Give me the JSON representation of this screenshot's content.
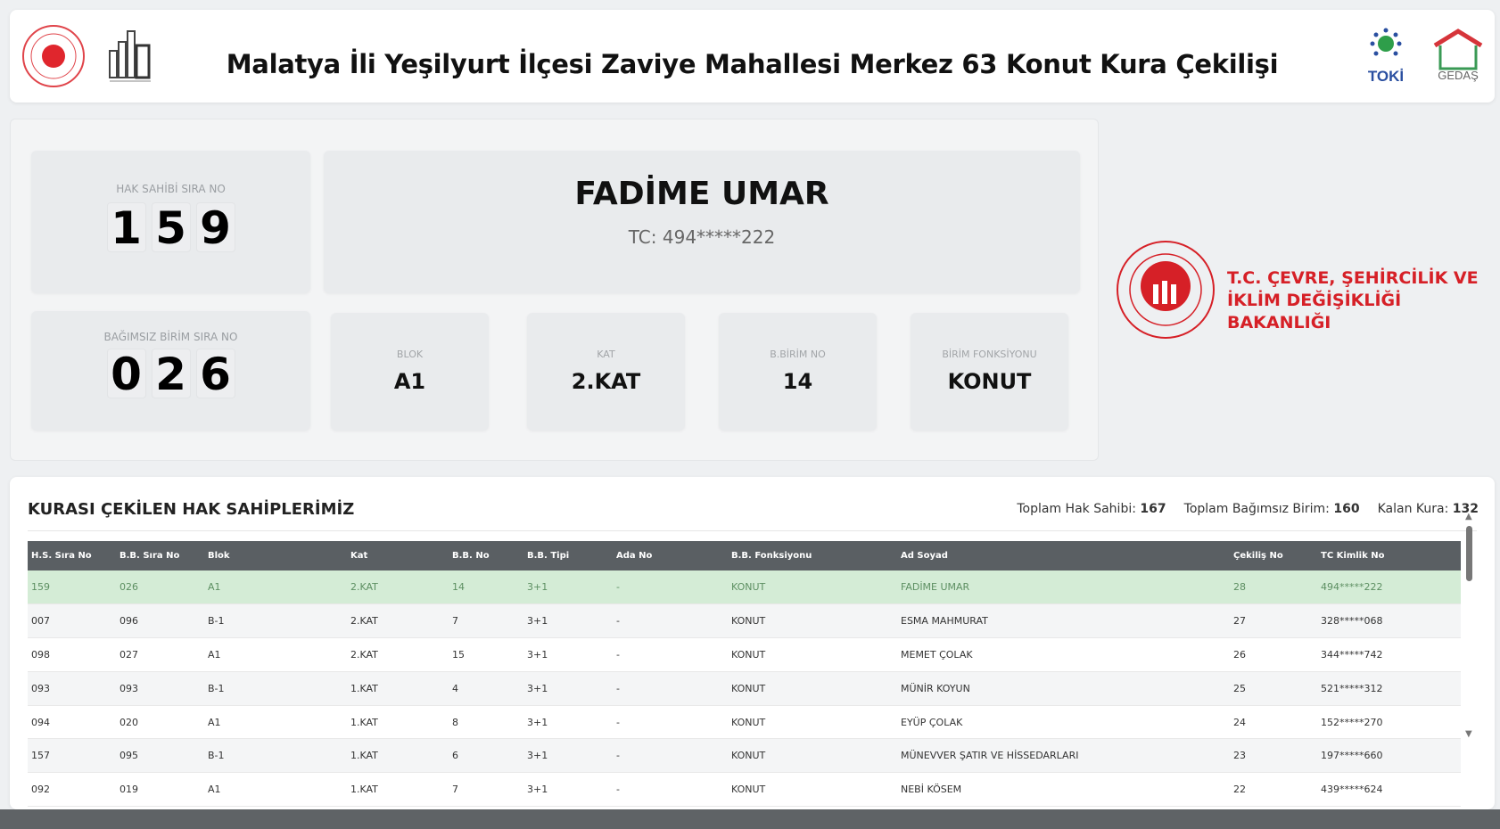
{
  "header": {
    "title": "Malatya İli Yeşilyurt İlçesi Zaviye Mahallesi Merkez 63 Konut Kura Çekilişi",
    "logos": [
      "ministry-seal",
      "building-logo",
      "TOKİ",
      "GEDAŞ"
    ]
  },
  "current": {
    "hak_label": "HAK SAHİBİ SIRA NO",
    "hak_digits": [
      "1",
      "5",
      "9"
    ],
    "name": "FADİME UMAR",
    "tc": "TC: 494*****222",
    "bb_label": "BAĞIMSIZ BİRİM SIRA NO",
    "bb_digits": [
      "0",
      "2",
      "6"
    ],
    "fields": [
      {
        "label": "BLOK",
        "value": "A1"
      },
      {
        "label": "KAT",
        "value": "2.KAT"
      },
      {
        "label": "B.BİRİM NO",
        "value": "14"
      },
      {
        "label": "BİRİM FONKSİYONU",
        "value": "KONUT"
      }
    ]
  },
  "ministry": {
    "line1": "T.C. ÇEVRE, ŞEHİRCİLİK VE",
    "line2": "İKLİM DEĞİŞİKLİĞİ BAKANLIĞI",
    "color": "#d62027"
  },
  "table": {
    "title": "KURASI ÇEKİLEN HAK SAHİPLERİMİZ",
    "stats": [
      {
        "label": "Toplam Hak Sahibi:",
        "value": "167"
      },
      {
        "label": "Toplam Bağımsız Birim:",
        "value": "160"
      },
      {
        "label": "Kalan Kura:",
        "value": "132"
      }
    ],
    "columns": [
      "H.S. Sıra No",
      "B.B. Sıra No",
      "Blok",
      "Kat",
      "B.B. No",
      "B.B. Tipi",
      "Ada No",
      "B.B. Fonksiyonu",
      "Ad Soyad",
      "Çekiliş No",
      "TC Kimlik No"
    ],
    "rows": [
      [
        "159",
        "026",
        "A1",
        "2.KAT",
        "14",
        "3+1",
        "-",
        "KONUT",
        "FADİME UMAR",
        "28",
        "494*****222"
      ],
      [
        "007",
        "096",
        "B-1",
        "2.KAT",
        "7",
        "3+1",
        "-",
        "KONUT",
        "ESMA MAHMURAT",
        "27",
        "328*****068"
      ],
      [
        "098",
        "027",
        "A1",
        "2.KAT",
        "15",
        "3+1",
        "-",
        "KONUT",
        "MEMET ÇOLAK",
        "26",
        "344*****742"
      ],
      [
        "093",
        "093",
        "B-1",
        "1.KAT",
        "4",
        "3+1",
        "-",
        "KONUT",
        "MÜNİR KOYUN",
        "25",
        "521*****312"
      ],
      [
        "094",
        "020",
        "A1",
        "1.KAT",
        "8",
        "3+1",
        "-",
        "KONUT",
        "EYÜP ÇOLAK",
        "24",
        "152*****270"
      ],
      [
        "157",
        "095",
        "B-1",
        "1.KAT",
        "6",
        "3+1",
        "-",
        "KONUT",
        "MÜNEVVER ŞATIR VE HİSSEDARLARI",
        "23",
        "197*****660"
      ],
      [
        "092",
        "019",
        "A1",
        "1.KAT",
        "7",
        "3+1",
        "-",
        "KONUT",
        "NEBİ KÖSEM",
        "22",
        "439*****624"
      ]
    ],
    "highlight_color": "#d4ecd6"
  }
}
